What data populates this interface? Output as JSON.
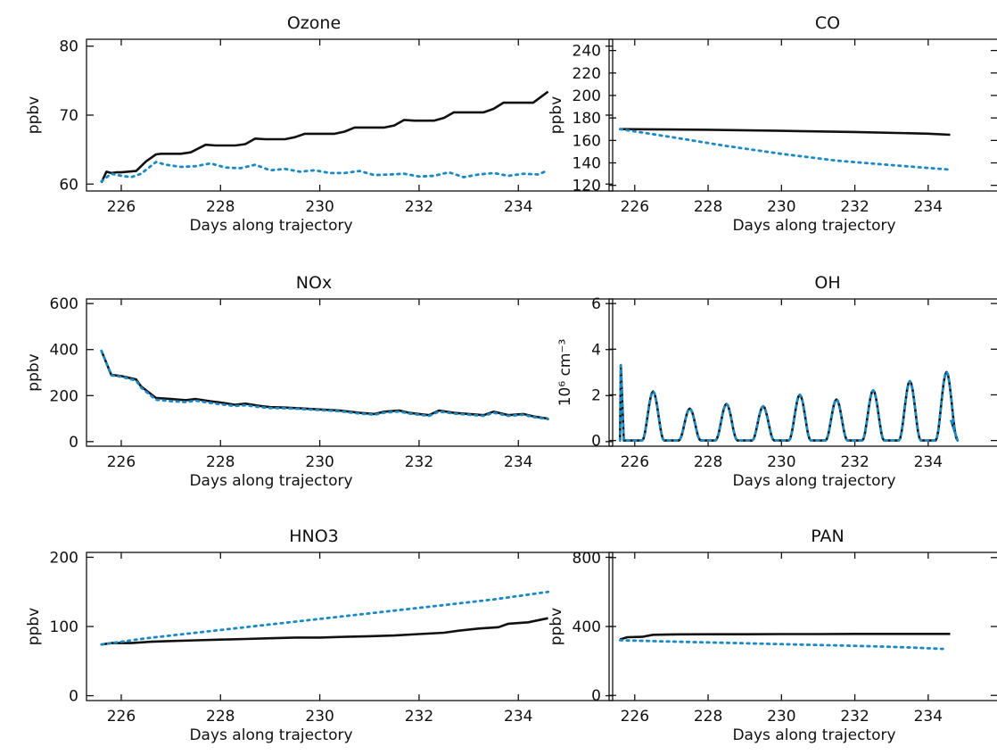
{
  "colors": {
    "solid": "#111111",
    "dotted": "#1a8ac6"
  },
  "chart_data": [
    {
      "type": "line",
      "title": "Ozone",
      "xlabel": "Days along trajectory",
      "ylabel": "ppbv",
      "xlim": [
        225.3,
        235.9
      ],
      "ylim": [
        59,
        81
      ],
      "xticks": [
        226,
        228,
        230,
        232,
        234
      ],
      "yticks": [
        60,
        70,
        80
      ],
      "grid": false,
      "series": [
        {
          "style": "solid",
          "x": [
            225.6,
            225.7,
            225.8,
            225.9,
            226.0,
            226.3,
            226.5,
            226.7,
            226.8,
            227.2,
            227.4,
            227.7,
            227.9,
            228.3,
            228.5,
            228.7,
            228.9,
            229.3,
            229.5,
            229.7,
            229.9,
            230.3,
            230.5,
            230.7,
            230.9,
            231.3,
            231.5,
            231.7,
            231.9,
            232.3,
            232.5,
            232.7,
            232.9,
            233.3,
            233.5,
            233.7,
            233.9,
            234.3,
            234.6
          ],
          "y": [
            60.2,
            61.8,
            61.6,
            61.7,
            61.7,
            61.9,
            63.3,
            64.3,
            64.4,
            64.4,
            64.6,
            65.7,
            65.6,
            65.6,
            65.8,
            66.6,
            66.5,
            66.5,
            66.8,
            67.3,
            67.3,
            67.3,
            67.6,
            68.2,
            68.2,
            68.2,
            68.5,
            69.3,
            69.2,
            69.2,
            69.6,
            70.4,
            70.4,
            70.4,
            70.9,
            71.8,
            71.8,
            71.8,
            73.4
          ]
        },
        {
          "style": "dotted",
          "x": [
            225.6,
            225.8,
            226.0,
            226.2,
            226.4,
            226.7,
            226.9,
            227.2,
            227.5,
            227.8,
            228.1,
            228.4,
            228.7,
            229.0,
            229.3,
            229.6,
            229.9,
            230.2,
            230.5,
            230.8,
            231.1,
            231.4,
            231.7,
            232.0,
            232.3,
            232.6,
            232.9,
            233.2,
            233.5,
            233.8,
            234.1,
            234.4,
            234.6
          ],
          "y": [
            60.4,
            61.5,
            61.2,
            61.0,
            61.5,
            63.2,
            62.8,
            62.5,
            62.6,
            63.0,
            62.4,
            62.3,
            62.8,
            62.0,
            62.2,
            61.8,
            62.0,
            61.6,
            61.6,
            61.9,
            61.3,
            61.4,
            61.5,
            61.1,
            61.2,
            61.7,
            61.0,
            61.4,
            61.6,
            61.2,
            61.5,
            61.4,
            62.0
          ]
        }
      ]
    },
    {
      "type": "line",
      "title": "CO",
      "xlabel": "Days along trajectory",
      "ylabel": "ppbv",
      "xlim": [
        225.3,
        235.9
      ],
      "ylim": [
        115,
        250
      ],
      "xticks": [
        226,
        228,
        230,
        232,
        234
      ],
      "yticks": [
        120,
        140,
        160,
        180,
        200,
        220,
        240
      ],
      "grid": false,
      "series": [
        {
          "style": "solid",
          "x": [
            225.6,
            228.0,
            230.0,
            232.0,
            234.0,
            234.6
          ],
          "y": [
            170,
            169.5,
            168.5,
            167.5,
            166,
            165
          ]
        },
        {
          "style": "dotted",
          "x": [
            225.6,
            227.0,
            228.5,
            230.0,
            231.5,
            233.0,
            234.6
          ],
          "y": [
            170,
            163,
            155,
            148,
            142,
            138,
            134
          ]
        }
      ]
    },
    {
      "type": "line",
      "title": "NOx",
      "xlabel": "Days along trajectory",
      "ylabel": "ppbv",
      "xlim": [
        225.3,
        235.9
      ],
      "ylim": [
        -20,
        620
      ],
      "xticks": [
        226,
        228,
        230,
        232,
        234
      ],
      "yticks": [
        0,
        200,
        400,
        600
      ],
      "grid": false,
      "series": [
        {
          "style": "solid",
          "x": [
            225.6,
            225.8,
            226.0,
            226.3,
            226.4,
            226.7,
            227.0,
            227.3,
            227.5,
            227.8,
            228.0,
            228.3,
            228.5,
            228.8,
            229.0,
            229.3,
            229.6,
            230.0,
            230.4,
            230.8,
            231.1,
            231.3,
            231.6,
            231.8,
            232.0,
            232.2,
            232.4,
            232.7,
            233.0,
            233.3,
            233.5,
            233.8,
            234.1,
            234.3,
            234.6
          ],
          "y": [
            395,
            290,
            285,
            270,
            240,
            190,
            185,
            180,
            185,
            175,
            170,
            160,
            165,
            155,
            150,
            148,
            145,
            140,
            135,
            125,
            120,
            130,
            135,
            125,
            120,
            115,
            135,
            125,
            120,
            115,
            130,
            115,
            120,
            110,
            100
          ]
        },
        {
          "style": "dotted",
          "x": [
            225.6,
            225.8,
            226.0,
            226.3,
            226.4,
            226.7,
            227.0,
            227.3,
            227.5,
            227.8,
            228.0,
            228.3,
            228.5,
            228.8,
            229.0,
            229.3,
            229.6,
            230.0,
            230.4,
            230.8,
            231.1,
            231.3,
            231.6,
            231.8,
            232.0,
            232.2,
            232.4,
            232.7,
            233.0,
            233.3,
            233.5,
            233.8,
            234.1,
            234.3,
            234.6
          ],
          "y": [
            395,
            288,
            282,
            265,
            235,
            182,
            176,
            172,
            178,
            168,
            162,
            155,
            158,
            150,
            146,
            145,
            142,
            137,
            132,
            122,
            117,
            126,
            131,
            122,
            117,
            112,
            131,
            122,
            117,
            112,
            126,
            112,
            117,
            107,
            98
          ]
        }
      ]
    },
    {
      "type": "line",
      "title": "OH",
      "xlabel": "Days along trajectory",
      "ylabel": "10⁶ cm⁻³",
      "xlim": [
        225.3,
        235.9
      ],
      "ylim": [
        -0.25,
        6.2
      ],
      "xticks": [
        226,
        228,
        230,
        232,
        234
      ],
      "yticks": [
        0,
        2,
        4,
        6
      ],
      "grid": false,
      "peaks": [
        {
          "day": 225.62,
          "value": 3.3
        },
        {
          "day": 226.5,
          "value": 2.15
        },
        {
          "day": 227.5,
          "value": 1.4
        },
        {
          "day": 228.5,
          "value": 1.6
        },
        {
          "day": 229.5,
          "value": 1.5
        },
        {
          "day": 230.5,
          "value": 2.0
        },
        {
          "day": 231.5,
          "value": 1.8
        },
        {
          "day": 232.5,
          "value": 2.2
        },
        {
          "day": 233.5,
          "value": 2.6
        },
        {
          "day": 234.5,
          "value": 3.0
        }
      ],
      "end_value": 0.9,
      "series": [
        {
          "style": "solid"
        },
        {
          "style": "dotted"
        }
      ]
    },
    {
      "type": "line",
      "title": "HNO3",
      "xlabel": "Days along trajectory",
      "ylabel": "ppbv",
      "xlim": [
        225.3,
        235.9
      ],
      "ylim": [
        -7,
        207
      ],
      "xticks": [
        226,
        228,
        230,
        232,
        234
      ],
      "yticks": [
        0,
        100,
        200
      ],
      "grid": false,
      "series": [
        {
          "style": "solid",
          "x": [
            225.6,
            225.8,
            226.2,
            226.6,
            227.0,
            227.5,
            228.0,
            228.5,
            229.0,
            229.5,
            230.0,
            230.5,
            231.0,
            231.5,
            232.0,
            232.5,
            232.8,
            233.2,
            233.6,
            233.8,
            234.2,
            234.6
          ],
          "y": [
            74,
            76,
            76,
            78,
            79,
            80,
            81,
            82,
            83,
            84,
            84,
            85,
            86,
            87,
            89,
            91,
            94,
            97,
            99,
            104,
            106,
            112
          ]
        },
        {
          "style": "dotted",
          "x": [
            225.6,
            226.5,
            227.5,
            228.5,
            229.5,
            230.5,
            231.5,
            232.5,
            233.5,
            234.6
          ],
          "y": [
            74,
            83,
            91,
            99,
            107,
            115,
            123,
            131,
            139,
            150
          ]
        }
      ]
    },
    {
      "type": "line",
      "title": "PAN",
      "xlabel": "Days along trajectory",
      "ylabel": "ppbv",
      "xlim": [
        225.3,
        235.9
      ],
      "ylim": [
        -30,
        830
      ],
      "xticks": [
        226,
        228,
        230,
        232,
        234
      ],
      "yticks": [
        0,
        400,
        800
      ],
      "grid": false,
      "series": [
        {
          "style": "solid",
          "x": [
            225.6,
            225.8,
            226.2,
            226.5,
            227.0,
            228.0,
            229.0,
            230.0,
            231.0,
            232.0,
            233.0,
            234.0,
            234.6
          ],
          "y": [
            325,
            338,
            340,
            352,
            354,
            355,
            355,
            356,
            356,
            357,
            357,
            357,
            357
          ]
        },
        {
          "style": "dotted",
          "x": [
            225.6,
            226.5,
            227.5,
            228.5,
            229.5,
            230.5,
            231.5,
            232.5,
            233.5,
            234.4
          ],
          "y": [
            320,
            315,
            310,
            305,
            300,
            295,
            290,
            285,
            278,
            270
          ]
        }
      ]
    }
  ]
}
